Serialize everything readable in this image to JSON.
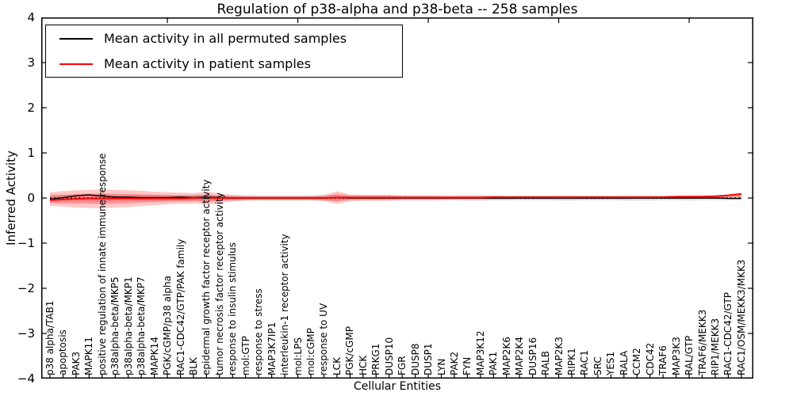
{
  "chart_data": {
    "type": "line",
    "title": "Regulation of p38-alpha and p38-beta -- 258 samples",
    "xlabel": "Cellular Entities",
    "ylabel": "Inferred Activity",
    "ylim": [
      -4,
      4
    ],
    "yticks": [
      4,
      3,
      2,
      1,
      0,
      -1,
      -2,
      -3,
      -4
    ],
    "grid": false,
    "legend_position": "upper left",
    "zero_reference_line": {
      "y": 0,
      "style": "dotted",
      "color": "#000000"
    },
    "categories": [
      "p38 alpha/TAB1",
      "apoptosis",
      "PAK3",
      "MAPK11",
      "positive regulation of innate immune response",
      "p38alpha-beta/MKP5",
      "p38alpha-beta/MKP1",
      "p38alpha-beta/MKP7",
      "MAPK14",
      "PGK/cGMP/p38 alpha",
      "RAC1-CDC42/GTP/PAK family",
      "BLK",
      "epidermal growth factor receptor activity",
      "tumor necrosis factor receptor activity",
      "response to insulin stimulus",
      "mol:GTP",
      "response to stress",
      "MAP3K7IP1",
      "interleukin-1 receptor activity",
      "mol:LPS",
      "mol:cGMP",
      "response to UV",
      "LCK",
      "PGK/cGMP",
      "HCK",
      "PRKG1",
      "DUSP10",
      "FGR",
      "DUSP8",
      "DUSP1",
      "LYN",
      "PAK2",
      "FYN",
      "MAP3K12",
      "PAK1",
      "MAP2K6",
      "MAP2K4",
      "DUSP16",
      "RALB",
      "MAP2K3",
      "RIPK1",
      "RAC1",
      "SRC",
      "YES1",
      "RALA",
      "CCM2",
      "CDC42",
      "TRAF6",
      "MAP3K3",
      "RAL/GTP",
      "TRAF6/MEKK3",
      "RIP1/MEKK3",
      "RAC1-CDC42/GTP",
      "RAC1/OSM/MEKK3/MKK3"
    ],
    "series": [
      {
        "name": "Mean activity in all permuted samples",
        "color": "#000000",
        "style": "solid",
        "values": [
          -0.03,
          0.01,
          0.05,
          0.07,
          0.04,
          0.02,
          0.02,
          0.01,
          0.01,
          0.01,
          0.02,
          0.01,
          0.02,
          0.01,
          0,
          0,
          0,
          0,
          0,
          0,
          0,
          0,
          0.01,
          0,
          0,
          0,
          0,
          0,
          0,
          0,
          0,
          0,
          0,
          0,
          0,
          0,
          0,
          0,
          0,
          0,
          0,
          0,
          0,
          0,
          0,
          0,
          0,
          0,
          0,
          0,
          0,
          0,
          -0.01,
          -0.01
        ]
      },
      {
        "name": "Mean activity in patient samples",
        "color": "#ff0000",
        "style": "solid",
        "values": [
          -0.05,
          -0.03,
          -0.02,
          -0.01,
          -0.01,
          -0.01,
          -0.01,
          -0.01,
          -0.01,
          -0.01,
          -0.01,
          0,
          0,
          0,
          0,
          0,
          0,
          0,
          0,
          0,
          0,
          0,
          0.01,
          0.01,
          0.01,
          0.01,
          0.01,
          0.01,
          0.01,
          0.01,
          0.01,
          0.01,
          0.01,
          0.01,
          0.02,
          0.02,
          0.02,
          0.02,
          0.02,
          0.02,
          0.02,
          0.02,
          0.02,
          0.02,
          0.02,
          0.02,
          0.02,
          0.02,
          0.03,
          0.03,
          0.03,
          0.04,
          0.06,
          0.09
        ]
      }
    ],
    "bands": [
      {
        "name": "permuted-activity-range",
        "color": "#000000",
        "opacity": 0.12,
        "upper": [
          0.08,
          0.08,
          0.08,
          0.08,
          0.08,
          0.07,
          0.07,
          0.07,
          0.07,
          0.06,
          0.06,
          0.06,
          0.06,
          0.06,
          0.05,
          0.05,
          0.05,
          0.05,
          0.05,
          0.05,
          0.05,
          0.06,
          0.07,
          0.06,
          0.06,
          0.06,
          0.06,
          0.05,
          0.05,
          0.05,
          0.05,
          0.05,
          0.06,
          0.06,
          0.05,
          0.05,
          0.05,
          0.05,
          0.05,
          0.06,
          0.06,
          0.05,
          0.05,
          0.05,
          0.06,
          0.06,
          0.06,
          0.05,
          0.05,
          0.06,
          0.06,
          0.06,
          0.07,
          0.08
        ],
        "lower": [
          -0.08,
          -0.08,
          -0.08,
          -0.08,
          -0.08,
          -0.07,
          -0.07,
          -0.07,
          -0.07,
          -0.06,
          -0.06,
          -0.06,
          -0.06,
          -0.06,
          -0.05,
          -0.05,
          -0.05,
          -0.05,
          -0.05,
          -0.05,
          -0.05,
          -0.06,
          -0.07,
          -0.06,
          -0.06,
          -0.06,
          -0.06,
          -0.05,
          -0.05,
          -0.05,
          -0.05,
          -0.05,
          -0.06,
          -0.06,
          -0.05,
          -0.05,
          -0.05,
          -0.05,
          -0.05,
          -0.06,
          -0.06,
          -0.05,
          -0.05,
          -0.05,
          -0.06,
          -0.06,
          -0.06,
          -0.05,
          -0.05,
          -0.06,
          -0.05,
          -0.05,
          -0.05,
          -0.05
        ]
      },
      {
        "name": "patient-activity-range",
        "color": "#ff0000",
        "opacity": 0.22,
        "upper": [
          0.13,
          0.15,
          0.17,
          0.18,
          0.19,
          0.18,
          0.17,
          0.16,
          0.14,
          0.13,
          0.12,
          0.11,
          0.14,
          0.1,
          0.07,
          0.06,
          0.05,
          0.05,
          0.05,
          0.05,
          0.05,
          0.07,
          0.15,
          0.08,
          0.07,
          0.07,
          0.07,
          0.06,
          0.06,
          0.06,
          0.05,
          0.05,
          0.05,
          0.05,
          0.05,
          0.04,
          0.04,
          0.04,
          0.04,
          0.04,
          0.04,
          0.04,
          0.04,
          0.03,
          0.03,
          0.03,
          0.04,
          0.04,
          0.04,
          0.04,
          0.05,
          0.06,
          0.08,
          0.12
        ],
        "lower": [
          -0.17,
          -0.19,
          -0.21,
          -0.22,
          -0.23,
          -0.21,
          -0.2,
          -0.18,
          -0.16,
          -0.14,
          -0.13,
          -0.12,
          -0.15,
          -0.11,
          -0.08,
          -0.06,
          -0.05,
          -0.05,
          -0.05,
          -0.05,
          -0.05,
          -0.07,
          -0.13,
          -0.07,
          -0.06,
          -0.06,
          -0.06,
          -0.05,
          -0.05,
          -0.05,
          -0.05,
          -0.04,
          -0.04,
          -0.04,
          -0.04,
          -0.04,
          -0.03,
          -0.03,
          -0.03,
          -0.03,
          -0.03,
          -0.03,
          -0.03,
          -0.03,
          -0.03,
          -0.02,
          -0.02,
          -0.02,
          -0.02,
          -0.02,
          -0.01,
          -0.01,
          0.0,
          0.02
        ]
      }
    ]
  }
}
